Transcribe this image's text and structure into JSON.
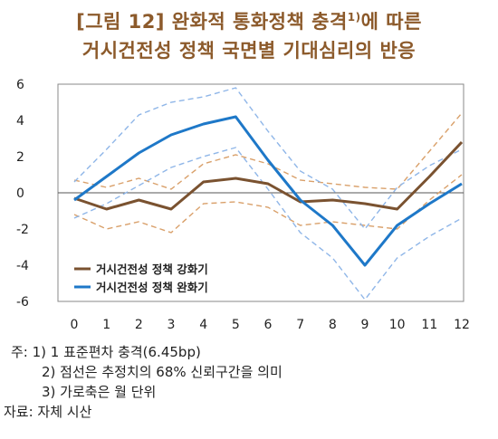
{
  "title": {
    "line1_main": "[그림 12] 완화적 통화정책 충격",
    "line1_sup": "1)",
    "line1_tail": "에 따른",
    "line2": "거시건전성 정책 국면별 기대심리의 반응"
  },
  "chart_data": {
    "type": "line",
    "x": [
      0,
      1,
      2,
      3,
      4,
      5,
      6,
      7,
      8,
      9,
      10,
      11,
      12
    ],
    "xlim": [
      0,
      12
    ],
    "ylim": [
      -6,
      6
    ],
    "yticks": [
      6,
      4,
      2,
      0,
      -2,
      -4,
      -6
    ],
    "grid": false,
    "legend_position": "lower-left",
    "series": [
      {
        "name": "거시건전성 정책 강화기",
        "color": "#7a5230",
        "values": [
          -0.3,
          -0.9,
          -0.4,
          -0.9,
          0.6,
          0.8,
          0.5,
          -0.5,
          -0.4,
          -0.6,
          -0.9,
          0.9,
          2.8
        ]
      },
      {
        "name": "거시건전성 정책 완화기",
        "color": "#1e78c8",
        "values": [
          -0.4,
          0.9,
          2.2,
          3.2,
          3.8,
          4.2,
          1.8,
          -0.4,
          -1.8,
          -4.0,
          -1.8,
          -0.6,
          0.5
        ]
      }
    ],
    "bands": [
      {
        "of": "거시건전성 정책 강화기",
        "color": "#d9a06a",
        "upper": [
          0.7,
          0.3,
          0.8,
          0.2,
          1.6,
          2.1,
          1.6,
          0.7,
          0.5,
          0.3,
          0.2,
          2.3,
          4.4
        ],
        "lower": [
          -1.2,
          -2.0,
          -1.6,
          -2.2,
          -0.6,
          -0.5,
          -0.8,
          -1.8,
          -1.6,
          -1.8,
          -2.0,
          -0.4,
          1.0
        ]
      },
      {
        "of": "거시건전성 정책 완화기",
        "color": "#8fb6e8",
        "upper": [
          0.6,
          2.4,
          4.3,
          5.0,
          5.3,
          5.8,
          3.4,
          1.2,
          0.2,
          -2.0,
          0.3,
          1.5,
          2.4
        ],
        "lower": [
          -1.4,
          -0.6,
          0.4,
          1.4,
          2.0,
          2.5,
          0.2,
          -2.2,
          -3.6,
          -5.9,
          -3.6,
          -2.4,
          -1.4
        ]
      }
    ]
  },
  "notes": [
    "주: 1) 1  표준편차  충격(6.45bp)",
    "2) 점선은  추정치의  68%  신뢰구간을  의미",
    "3)  가로축은  월  단위",
    "자료: 자체  시산"
  ]
}
